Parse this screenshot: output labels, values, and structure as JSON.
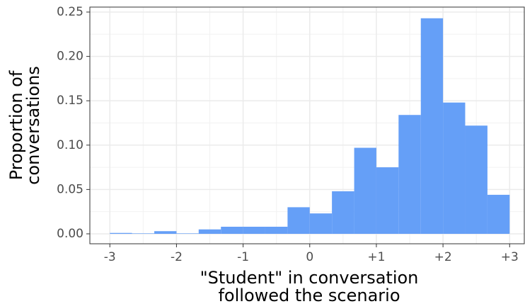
{
  "chart_data": {
    "type": "histogram",
    "xlabel": [
      "\"Student\" in conversation",
      "followed the scenario"
    ],
    "ylabel": [
      "Proportion of",
      "conversations"
    ],
    "bins": [
      -3,
      -2.667,
      -2.333,
      -2,
      -1.667,
      -1.333,
      -1,
      -0.667,
      -0.333,
      0,
      0.333,
      0.667,
      1,
      1.333,
      1.667,
      2,
      2.333,
      2.667,
      3
    ],
    "values": [
      0.001,
      0.0005,
      0.003,
      0.0005,
      0.005,
      0.008,
      0.008,
      0.008,
      0.03,
      0.023,
      0.048,
      0.097,
      0.075,
      0.134,
      0.243,
      0.148,
      0.122,
      0.044
    ],
    "color": "#659ff7",
    "xlim": [
      -3.3,
      3.22
    ],
    "ylim": [
      -0.0112,
      0.2556
    ],
    "xticks": [
      -3,
      -2,
      -1,
      0,
      {
        "value": 1,
        "label": "+1"
      },
      {
        "value": 2,
        "label": "+2"
      },
      {
        "value": 3,
        "label": "+3"
      }
    ],
    "yticks": [
      {
        "value": 0,
        "label": "0.00"
      },
      0.05,
      {
        "value": 0.1,
        "label": "0.10"
      },
      0.15,
      {
        "value": 0.2,
        "label": "0.20"
      },
      0.25
    ],
    "grid": true
  }
}
